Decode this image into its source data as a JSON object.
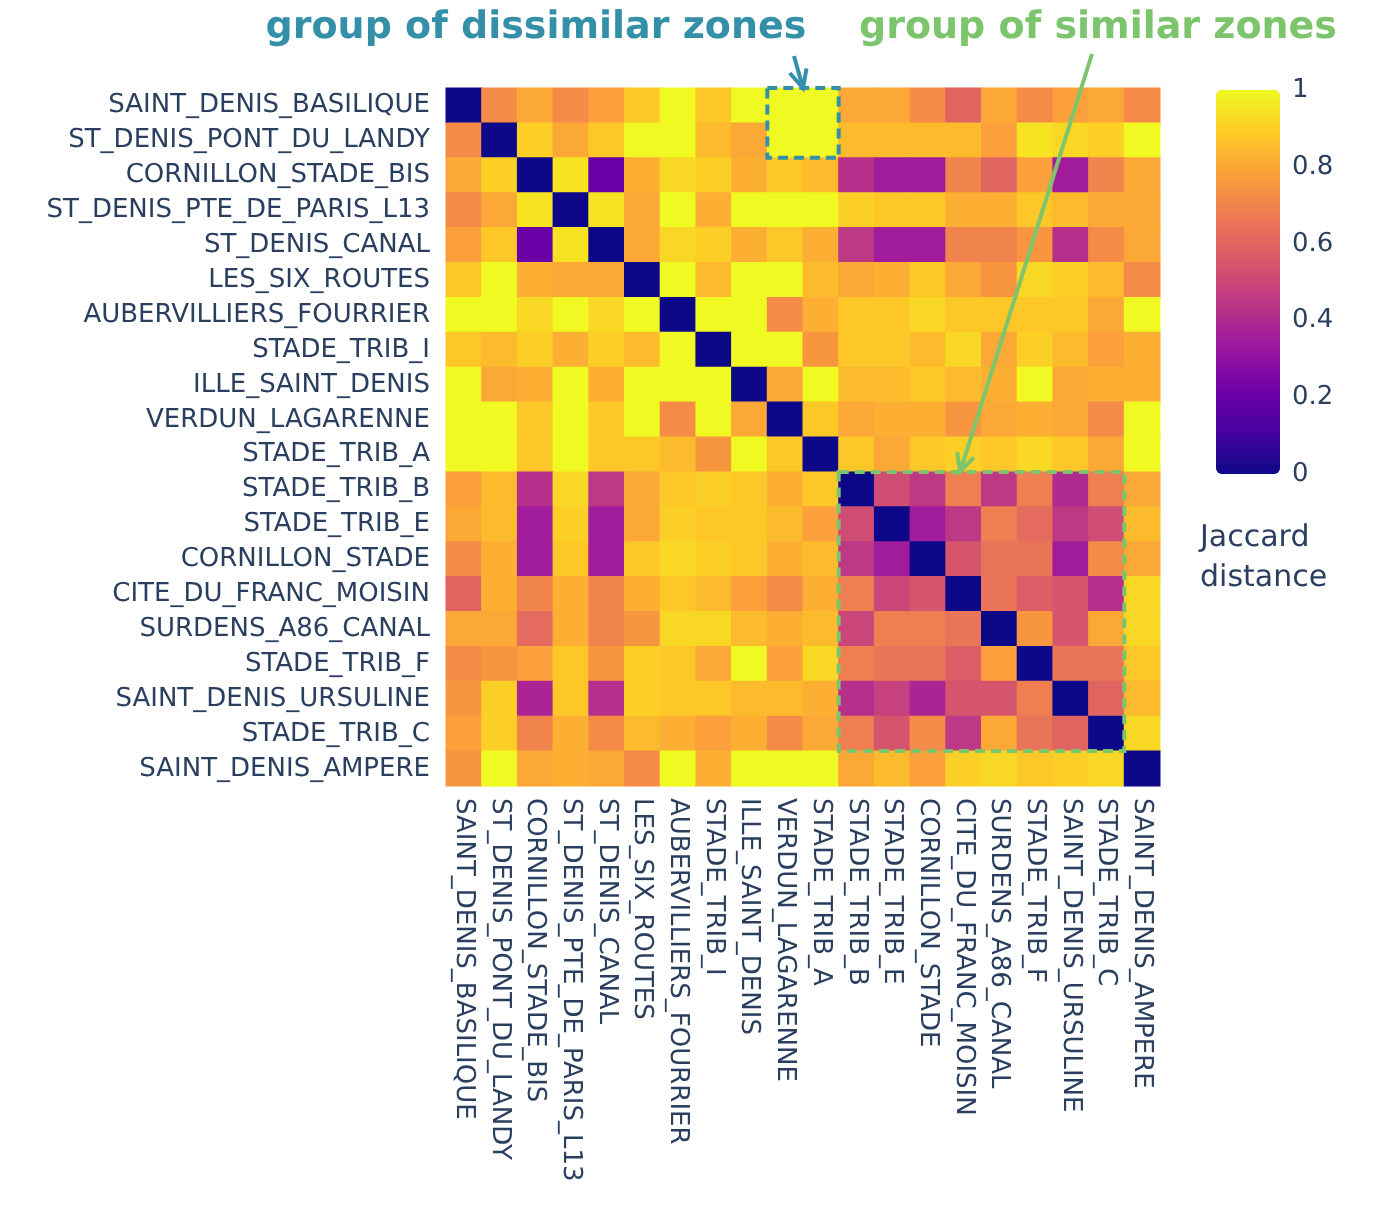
{
  "chart_data": {
    "type": "heatmap",
    "categories": [
      "SAINT_DENIS_BASILIQUE",
      "ST_DENIS_PONT_DU_LANDY",
      "CORNILLON_STADE_BIS",
      "ST_DENIS_PTE_DE_PARIS_L13",
      "ST_DENIS_CANAL",
      "LES_SIX_ROUTES",
      "AUBERVILLIERS_FOURRIER",
      "STADE_TRIB_I",
      "ILLE_SAINT_DENIS",
      "VERDUN_LAGARENNE",
      "STADE_TRIB_A",
      "STADE_TRIB_B",
      "STADE_TRIB_E",
      "CORNILLON_STADE",
      "CITE_DU_FRANC_MOISIN",
      "SURDENS_A86_CANAL",
      "STADE_TRIB_F",
      "SAINT_DENIS_URSULINE",
      "STADE_TRIB_C",
      "SAINT_DENIS_AMPERE"
    ],
    "y_categories": [
      "SAINT_DENIS_BASILIQUE",
      "ST_DENIS_PONT_DU_LANDY",
      "CORNILLON_STADE_BIS",
      "ST_DENIS_PTE_DE_PARIS_L13",
      "ST_DENIS_CANAL",
      "LES_SIX_ROUTES",
      "AUBERVILLIERS_FOURRIER",
      "STADE_TRIB_I",
      "ILLE_SAINT_DENIS",
      "VERDUN_LAGARENNE",
      "STADE_TRIB_A",
      "STADE_TRIB_B",
      "STADE_TRIB_E",
      "CORNILLON_STADE",
      "CITE_DU_FRANC_MOISIN",
      "SURDENS_A86_CANAL",
      "STADE_TRIB_F",
      "SAINT_DENIS_URSULINE",
      "STADE_TRIB_C",
      "SAINT_DENIS_AMPERE"
    ],
    "cells": [
      [
        0,
        0.72,
        0.8,
        0.72,
        0.78,
        0.88,
        1,
        0.88,
        1,
        1,
        1,
        0.8,
        0.8,
        0.72,
        0.6,
        0.8,
        0.72,
        0.78,
        0.8,
        0.72
      ],
      [
        0.72,
        0,
        0.9,
        0.8,
        0.88,
        1,
        1,
        0.85,
        0.8,
        1,
        1,
        0.85,
        0.85,
        0.85,
        0.85,
        0.78,
        0.95,
        0.92,
        0.9,
        1
      ],
      [
        0.8,
        0.9,
        0,
        0.95,
        0.2,
        0.82,
        0.92,
        0.9,
        0.82,
        0.88,
        0.85,
        0.42,
        0.35,
        0.35,
        0.7,
        0.6,
        0.78,
        0.35,
        0.7,
        0.8
      ],
      [
        0.72,
        0.8,
        0.95,
        0,
        0.95,
        0.8,
        1,
        0.82,
        1,
        1,
        1,
        0.9,
        0.88,
        0.88,
        0.82,
        0.82,
        0.88,
        0.85,
        0.8,
        0.8
      ],
      [
        0.78,
        0.88,
        0.2,
        0.95,
        0,
        0.8,
        0.92,
        0.9,
        0.82,
        0.88,
        0.82,
        0.45,
        0.35,
        0.35,
        0.7,
        0.7,
        0.75,
        0.42,
        0.72,
        0.8
      ],
      [
        0.88,
        1,
        0.82,
        0.8,
        0.8,
        0,
        1,
        0.85,
        1,
        1,
        0.85,
        0.8,
        0.82,
        0.88,
        0.8,
        0.75,
        0.92,
        0.9,
        0.85,
        0.72
      ],
      [
        1,
        1,
        0.92,
        1,
        0.92,
        1,
        0,
        1,
        1,
        0.72,
        0.82,
        0.88,
        0.88,
        0.92,
        0.88,
        0.88,
        0.88,
        0.88,
        0.8,
        1
      ],
      [
        0.88,
        0.85,
        0.9,
        0.82,
        0.9,
        0.85,
        1,
        0,
        1,
        1,
        0.75,
        0.88,
        0.88,
        0.85,
        0.92,
        0.8,
        0.9,
        0.85,
        0.78,
        0.82
      ],
      [
        1,
        0.8,
        0.82,
        1,
        0.82,
        1,
        1,
        1,
        0,
        0.8,
        1,
        0.85,
        0.85,
        0.88,
        0.85,
        0.82,
        1,
        0.8,
        0.82,
        0.82
      ],
      [
        1,
        1,
        0.88,
        1,
        0.88,
        1,
        0.72,
        1,
        0.8,
        0,
        0.88,
        0.8,
        0.82,
        0.82,
        0.75,
        0.8,
        0.82,
        0.8,
        0.72,
        1
      ],
      [
        1,
        1,
        0.88,
        1,
        0.88,
        0.88,
        0.85,
        0.75,
        1,
        0.88,
        0,
        0.88,
        0.8,
        0.88,
        0.9,
        0.88,
        0.92,
        0.88,
        0.8,
        1
      ],
      [
        0.78,
        0.85,
        0.42,
        0.92,
        0.45,
        0.8,
        0.88,
        0.9,
        0.88,
        0.82,
        0.88,
        0,
        0.52,
        0.45,
        0.68,
        0.45,
        0.68,
        0.4,
        0.68,
        0.8
      ],
      [
        0.8,
        0.85,
        0.35,
        0.9,
        0.35,
        0.8,
        0.9,
        0.88,
        0.88,
        0.85,
        0.78,
        0.52,
        0,
        0.35,
        0.45,
        0.68,
        0.62,
        0.45,
        0.52,
        0.85
      ],
      [
        0.72,
        0.82,
        0.35,
        0.88,
        0.35,
        0.88,
        0.92,
        0.9,
        0.88,
        0.82,
        0.85,
        0.45,
        0.35,
        0,
        0.55,
        0.65,
        0.65,
        0.35,
        0.72,
        0.8
      ],
      [
        0.6,
        0.82,
        0.7,
        0.82,
        0.7,
        0.82,
        0.88,
        0.85,
        0.78,
        0.72,
        0.82,
        0.68,
        0.5,
        0.55,
        0,
        0.65,
        0.58,
        0.55,
        0.42,
        0.92
      ],
      [
        0.8,
        0.8,
        0.62,
        0.82,
        0.7,
        0.75,
        0.92,
        0.92,
        0.85,
        0.82,
        0.85,
        0.5,
        0.68,
        0.68,
        0.65,
        0,
        0.75,
        0.55,
        0.8,
        0.92
      ],
      [
        0.72,
        0.75,
        0.78,
        0.88,
        0.75,
        0.9,
        0.88,
        0.8,
        1,
        0.78,
        0.92,
        0.68,
        0.65,
        0.65,
        0.58,
        0.78,
        0,
        0.65,
        0.65,
        0.88
      ],
      [
        0.75,
        0.9,
        0.38,
        0.88,
        0.42,
        0.9,
        0.88,
        0.88,
        0.85,
        0.85,
        0.82,
        0.42,
        0.48,
        0.38,
        0.55,
        0.55,
        0.68,
        0,
        0.6,
        0.85
      ],
      [
        0.78,
        0.9,
        0.7,
        0.82,
        0.72,
        0.85,
        0.82,
        0.78,
        0.82,
        0.72,
        0.8,
        0.68,
        0.55,
        0.72,
        0.45,
        0.8,
        0.65,
        0.6,
        0,
        0.92
      ],
      [
        0.75,
        1,
        0.8,
        0.82,
        0.8,
        0.72,
        1,
        0.82,
        1,
        1,
        1,
        0.8,
        0.85,
        0.78,
        0.9,
        0.92,
        0.88,
        0.9,
        0.92,
        0
      ]
    ],
    "clim": [
      0,
      1
    ],
    "cticks": [
      0,
      0.2,
      0.4,
      0.6,
      0.8,
      1
    ],
    "clabel": "Jaccard distance",
    "annotations": [
      "group of dissimilar zones",
      "group of similar zones"
    ]
  }
}
